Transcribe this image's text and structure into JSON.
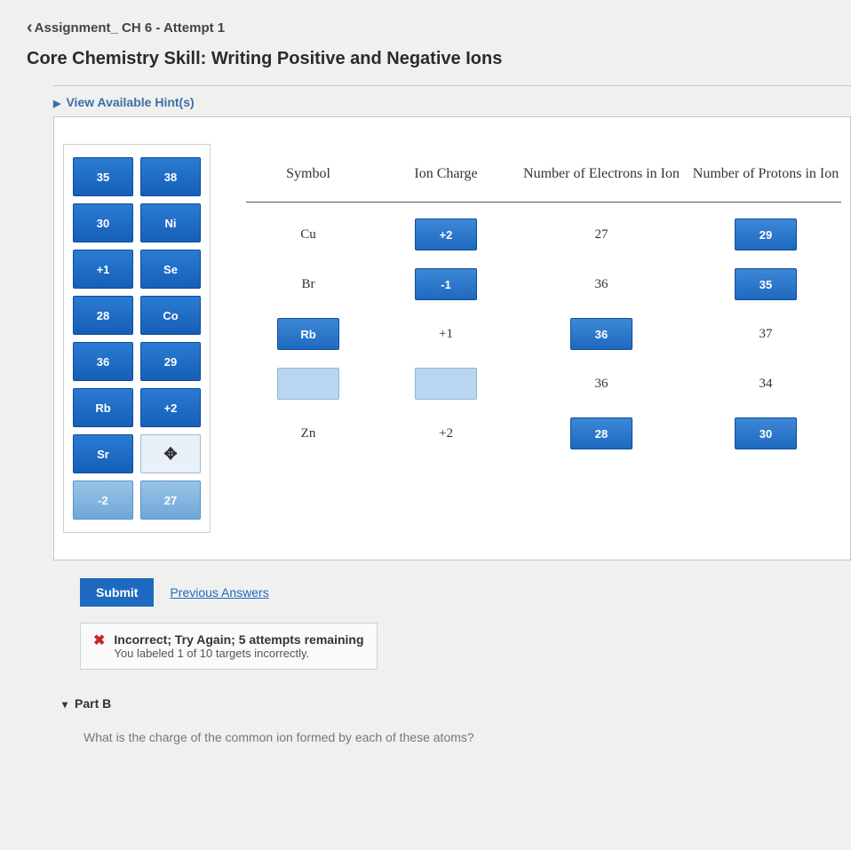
{
  "breadcrumb": "Assignment_ CH 6 - Attempt 1",
  "title": "Core Chemistry Skill: Writing Positive and Negative Ions",
  "hints_label": "View Available Hint(s)",
  "palette": {
    "tiles": [
      {
        "label": "35",
        "light": false
      },
      {
        "label": "38",
        "light": false
      },
      {
        "label": "30",
        "light": false
      },
      {
        "label": "Ni",
        "light": false
      },
      {
        "label": "+1",
        "light": false
      },
      {
        "label": "Se",
        "light": false
      },
      {
        "label": "28",
        "light": false
      },
      {
        "label": "Co",
        "light": false
      },
      {
        "label": "36",
        "light": false
      },
      {
        "label": "29",
        "light": false
      },
      {
        "label": "Rb",
        "light": false
      },
      {
        "label": "+2",
        "light": false
      },
      {
        "label": "Sr",
        "light": false
      },
      {
        "label": "✥",
        "light": false,
        "cursor": true
      },
      {
        "label": "-2",
        "light": true
      },
      {
        "label": "27",
        "light": true
      }
    ]
  },
  "table": {
    "headers": {
      "symbol": "Symbol",
      "charge": "Ion Charge",
      "electrons": "Number of Electrons in Ion",
      "protons": "Number of Protons in Ion"
    },
    "rows": [
      {
        "symbol": {
          "type": "text",
          "value": "Cu"
        },
        "charge": {
          "type": "tile",
          "value": "+2"
        },
        "electrons": {
          "type": "text",
          "value": "27"
        },
        "protons": {
          "type": "tile",
          "value": "29"
        }
      },
      {
        "symbol": {
          "type": "text",
          "value": "Br"
        },
        "charge": {
          "type": "tile",
          "value": "-1"
        },
        "electrons": {
          "type": "text",
          "value": "36"
        },
        "protons": {
          "type": "tile",
          "value": "35"
        }
      },
      {
        "symbol": {
          "type": "tile",
          "value": "Rb"
        },
        "charge": {
          "type": "text",
          "value": "+1"
        },
        "electrons": {
          "type": "tile",
          "value": "36"
        },
        "protons": {
          "type": "text",
          "value": "37"
        }
      },
      {
        "symbol": {
          "type": "empty",
          "value": ""
        },
        "charge": {
          "type": "empty",
          "value": ""
        },
        "electrons": {
          "type": "text",
          "value": "36"
        },
        "protons": {
          "type": "text",
          "value": "34"
        }
      },
      {
        "symbol": {
          "type": "text",
          "value": "Zn"
        },
        "charge": {
          "type": "text",
          "value": "+2"
        },
        "electrons": {
          "type": "tile",
          "value": "28"
        },
        "protons": {
          "type": "tile",
          "value": "30"
        }
      }
    ]
  },
  "actions": {
    "submit": "Submit",
    "previous": "Previous Answers"
  },
  "feedback": {
    "title": "Incorrect; Try Again; 5 attempts remaining",
    "detail": "You labeled 1 of 10 targets incorrectly."
  },
  "partB": {
    "header": "Part B",
    "question": "What is the charge of the common ion formed by each of these atoms?"
  },
  "colors": {
    "tile_bg_top": "#2b7bd3",
    "tile_bg_bottom": "#155fb8",
    "tile_border": "#0e4d99",
    "empty_bg": "#b8d6ef",
    "link": "#1e6ac0",
    "error": "#c62828"
  }
}
